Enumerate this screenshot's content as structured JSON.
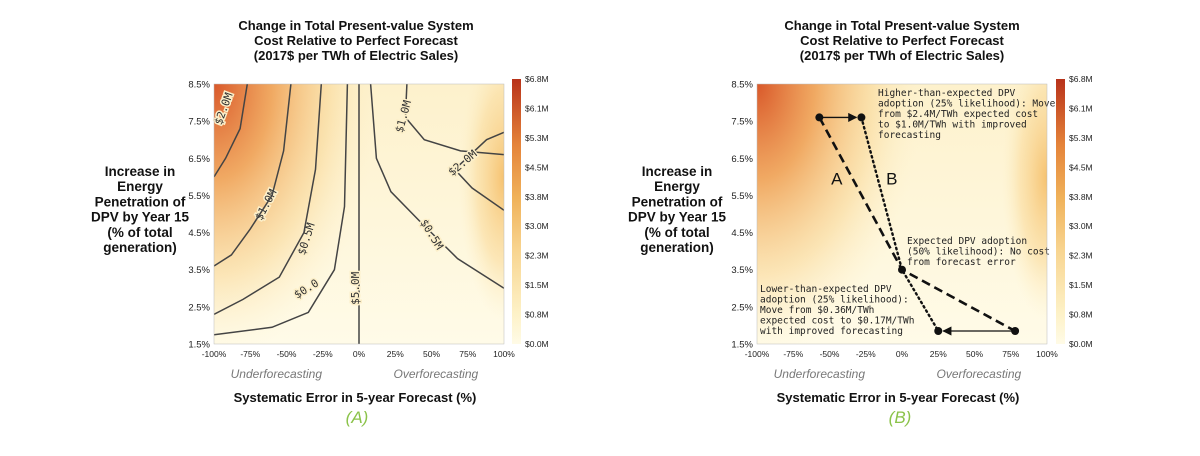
{
  "chart_data": [
    {
      "type": "heatmap",
      "panel_label": "(A)",
      "title_lines": [
        "Change in Total Present-value System",
        "Cost Relative to Perfect Forecast",
        "(2017$ per TWh of Electric Sales)"
      ],
      "ylabel_lines": [
        "Increase in",
        "Energy",
        "Penetration of",
        "DPV by Year 15",
        "(% of total",
        "generation)"
      ],
      "xlabel": "Systematic Error in 5-year Forecast (%)",
      "x_ticks": [
        "-100%",
        "-75%",
        "-50%",
        "-25%",
        "0%",
        "25%",
        "50%",
        "75%",
        "100%"
      ],
      "y_ticks": [
        "8.5%",
        "7.5%",
        "6.5%",
        "5.5%",
        "4.5%",
        "3.5%",
        "2.5%",
        "1.5%"
      ],
      "xlim": [
        -100,
        100
      ],
      "ylim": [
        1.5,
        8.5
      ],
      "region_labels": [
        "Underforecasting",
        "Overforecasting"
      ],
      "colorbar_ticks": [
        "$6.8M",
        "$6.1M",
        "$5.3M",
        "$4.5M",
        "$3.8M",
        "$3.0M",
        "$2.3M",
        "$1.5M",
        "$0.8M",
        "$0.0M"
      ],
      "colorbar_range": [
        0.0,
        6.8
      ],
      "contours": [
        {
          "label": "$0.0",
          "level": 0.0,
          "points": [
            [
              0,
              8.5
            ],
            [
              0,
              1.5
            ]
          ]
        },
        {
          "label": "$0.5M",
          "level": 0.5,
          "points": [
            [
              -100,
              1.75
            ],
            [
              -60,
              1.95
            ],
            [
              -35,
              2.35
            ],
            [
              -17,
              3.5
            ],
            [
              -10,
              5.2
            ],
            [
              -8,
              8.5
            ]
          ]
        },
        {
          "label": "$1.0M",
          "level": 1.0,
          "points": [
            [
              -100,
              2.3
            ],
            [
              -80,
              2.7
            ],
            [
              -55,
              3.3
            ],
            [
              -38,
              4.5
            ],
            [
              -30,
              6.2
            ],
            [
              -26,
              8.5
            ]
          ]
        },
        {
          "label": "$2.0M",
          "level": 2.0,
          "points": [
            [
              -100,
              3.6
            ],
            [
              -88,
              3.9
            ],
            [
              -75,
              4.6
            ],
            [
              -60,
              5.5
            ],
            [
              -52,
              6.7
            ],
            [
              -47,
              8.5
            ]
          ]
        },
        {
          "label": "$5.0M",
          "level": 5.0,
          "points": [
            [
              -100,
              6.0
            ],
            [
              -92,
              6.5
            ],
            [
              -82,
              7.3
            ],
            [
              -77,
              8.5
            ]
          ]
        },
        {
          "label": "$0.5M",
          "level": 0.5,
          "points": [
            [
              8,
              8.5
            ],
            [
              12,
              6.5
            ],
            [
              22,
              5.6
            ],
            [
              42,
              4.8
            ],
            [
              68,
              3.8
            ],
            [
              100,
              3.0
            ]
          ]
        },
        {
          "label": "$1.0M",
          "level": 1.0,
          "points": [
            [
              33,
              8.5
            ],
            [
              32,
              7.6
            ],
            [
              45,
              7.0
            ],
            [
              70,
              6.7
            ],
            [
              100,
              6.6
            ]
          ]
        },
        {
          "label": "$2.0M",
          "level": 2.0,
          "points": [
            [
              100,
              7.2
            ],
            [
              88,
              7.0
            ],
            [
              66,
              6.2
            ],
            [
              78,
              5.7
            ],
            [
              100,
              5.1
            ]
          ]
        }
      ]
    },
    {
      "type": "heatmap",
      "panel_label": "(B)",
      "title_lines": [
        "Change in Total Present-value System",
        "Cost Relative to Perfect Forecast",
        "(2017$ per TWh of Electric Sales)"
      ],
      "ylabel_lines": [
        "Increase in",
        "Energy",
        "Penetration of",
        "DPV by Year 15",
        "(% of total",
        "generation)"
      ],
      "xlabel": "Systematic Error in 5-year Forecast (%)",
      "x_ticks": [
        "-100%",
        "-75%",
        "-50%",
        "-25%",
        "0%",
        "25%",
        "50%",
        "75%",
        "100%"
      ],
      "y_ticks": [
        "8.5%",
        "7.5%",
        "6.5%",
        "5.5%",
        "4.5%",
        "3.5%",
        "2.5%",
        "1.5%"
      ],
      "xlim": [
        -100,
        100
      ],
      "ylim": [
        1.5,
        8.5
      ],
      "region_labels": [
        "Underforecasting",
        "Overforecasting"
      ],
      "colorbar_ticks": [
        "$6.8M",
        "$6.1M",
        "$5.3M",
        "$4.5M",
        "$3.8M",
        "$3.0M",
        "$2.3M",
        "$1.5M",
        "$0.8M",
        "$0.0M"
      ],
      "colorbar_range": [
        0.0,
        6.8
      ],
      "paths": [
        {
          "name": "A",
          "style": "dashed",
          "points": [
            [
              -57,
              7.6
            ],
            [
              0,
              3.5
            ],
            [
              78,
              1.85
            ]
          ]
        },
        {
          "name": "B",
          "style": "dotted",
          "points": [
            [
              -28,
              7.6
            ],
            [
              0,
              3.5
            ],
            [
              25,
              1.85
            ]
          ]
        }
      ],
      "arrows": [
        {
          "from": [
            -57,
            7.6
          ],
          "to": [
            -28,
            7.6
          ]
        },
        {
          "from": [
            78,
            1.85
          ],
          "to": [
            25,
            1.85
          ]
        }
      ],
      "markers": [
        [
          -57,
          7.6
        ],
        [
          -28,
          7.6
        ],
        [
          0,
          3.5
        ],
        [
          78,
          1.85
        ],
        [
          25,
          1.85
        ]
      ],
      "annotations": [
        {
          "lines": [
            "Higher-than-expected DPV",
            "adoption (25% likelihood): Move",
            "from $2.4M/TWh expected cost",
            "to $1.0M/TWh with improved",
            "forecasting"
          ]
        },
        {
          "lines": [
            "Expected DPV adoption",
            "(50% likelihood): No cost",
            "from forecast error"
          ]
        },
        {
          "lines": [
            "Lower-than-expected DPV",
            "adoption (25% likelihood):",
            "Move from $0.36M/TWh",
            "expected cost to $0.17M/TWh",
            "with improved forecasting"
          ]
        }
      ]
    }
  ]
}
